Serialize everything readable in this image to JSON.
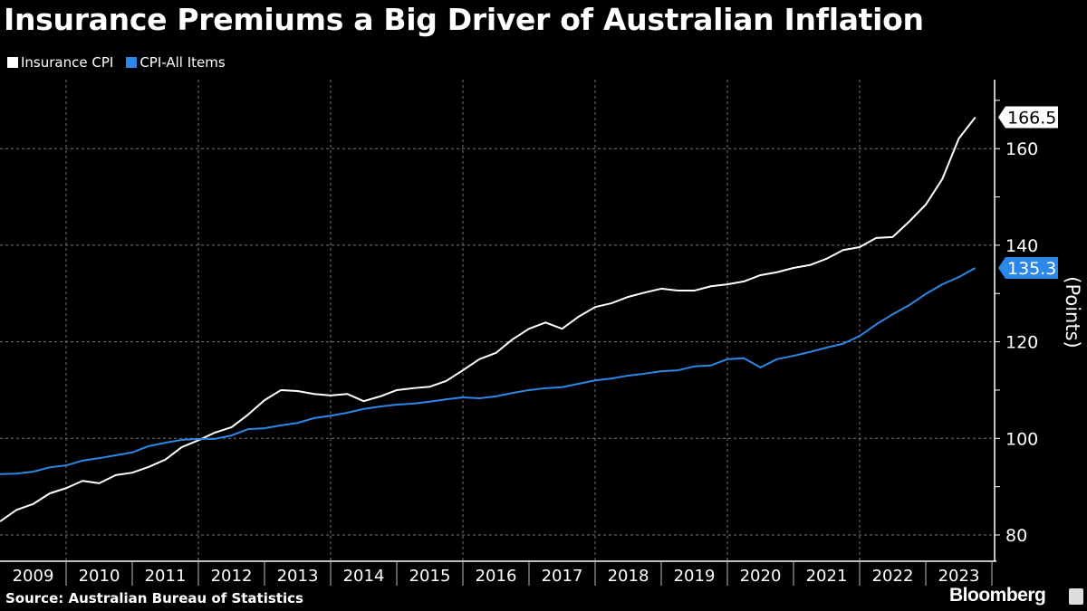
{
  "chart_data": {
    "type": "line",
    "title": "Insurance Premiums a Big Driver of Australian Inflation",
    "ylabel": "(Points)",
    "xlabel": "",
    "ylim": [
      78,
      172
    ],
    "xlim": [
      2009,
      2024
    ],
    "yticks": [
      80,
      100,
      120,
      140,
      160
    ],
    "xtick_labels": [
      "2009",
      "2010",
      "2011",
      "2012",
      "2013",
      "2014",
      "2015",
      "2016",
      "2017",
      "2018",
      "2019",
      "2020",
      "2021",
      "2022",
      "2023"
    ],
    "grid": true,
    "legend_position": "top-left",
    "x_start": 2009.0,
    "x_step": 0.25,
    "series": [
      {
        "name": "Insurance CPI",
        "color": "#ffffff",
        "last_label": "166.5",
        "values": [
          82.8,
          85.2,
          86.4,
          88.6,
          89.7,
          91.2,
          90.7,
          92.4,
          92.9,
          94.1,
          95.6,
          98.2,
          99.6,
          101.2,
          102.3,
          104.9,
          107.9,
          110.0,
          109.8,
          109.2,
          108.9,
          109.2,
          107.7,
          108.7,
          110.0,
          110.4,
          110.7,
          111.9,
          114.1,
          116.4,
          117.7,
          120.5,
          122.7,
          124.0,
          122.7,
          125.2,
          127.2,
          128.0,
          129.3,
          130.2,
          131.0,
          130.6,
          130.6,
          131.5,
          131.9,
          132.5,
          133.8,
          134.4,
          135.3,
          135.9,
          137.2,
          139.0,
          139.6,
          141.5,
          141.7,
          144.9,
          148.4,
          153.7,
          162.1,
          166.5
        ]
      },
      {
        "name": "CPI-All Items",
        "color": "#2b87e8",
        "last_label": "135.3",
        "values": [
          92.6,
          92.7,
          93.1,
          94.0,
          94.4,
          95.4,
          95.9,
          96.5,
          97.1,
          98.4,
          99.1,
          99.7,
          99.9,
          99.9,
          100.6,
          101.9,
          102.1,
          102.7,
          103.2,
          104.2,
          104.7,
          105.3,
          106.1,
          106.6,
          107.0,
          107.2,
          107.6,
          108.1,
          108.5,
          108.3,
          108.7,
          109.4,
          110.0,
          110.4,
          110.6,
          111.3,
          112.0,
          112.4,
          113.0,
          113.4,
          113.9,
          114.1,
          114.9,
          115.1,
          116.4,
          116.6,
          114.7,
          116.4,
          117.1,
          117.9,
          118.8,
          119.6,
          121.2,
          123.6,
          125.7,
          127.6,
          129.9,
          131.9,
          133.4,
          135.3
        ]
      }
    ]
  },
  "footer": {
    "source": "Source: Australian Bureau of Statistics",
    "brand": "Bloomberg"
  }
}
